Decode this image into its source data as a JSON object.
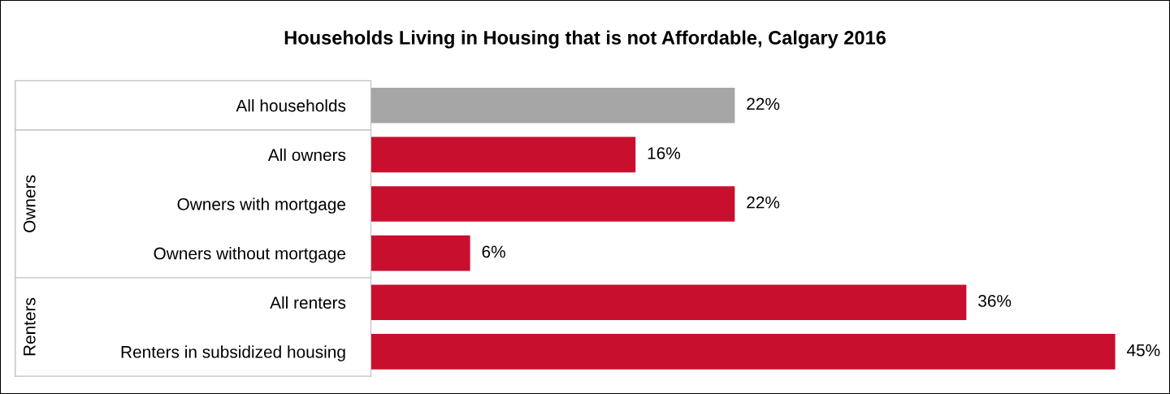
{
  "chart_data": {
    "type": "bar",
    "orientation": "horizontal",
    "title": "Households Living in Housing that is not Affordable, Calgary 2016",
    "categories": [
      "All households",
      "All owners",
      "Owners with mortgage",
      "Owners without mortgage",
      "All renters",
      "Renters in subsidized housing"
    ],
    "values": [
      22,
      16,
      22,
      6,
      36,
      45
    ],
    "colors": [
      "#a6a6a6",
      "#c8102e",
      "#c8102e",
      "#c8102e",
      "#c8102e",
      "#c8102e"
    ],
    "value_labels": [
      "22%",
      "16%",
      "22%",
      "6%",
      "36%",
      "45%"
    ],
    "annotations": [
      "Owners",
      "Renters"
    ],
    "grid": false,
    "legend": false
  }
}
